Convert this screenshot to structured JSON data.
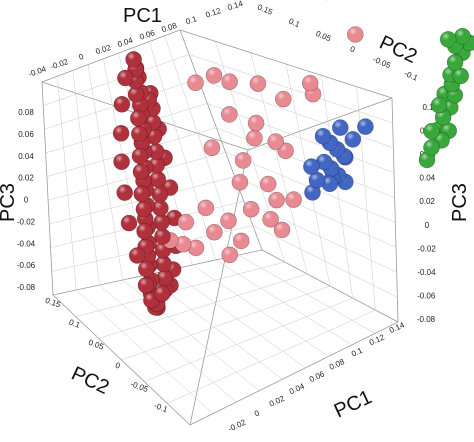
{
  "chart_data": {
    "type": "scatter",
    "projection": "3d",
    "axis_titles": {
      "top_pc1": "PC1",
      "top_pc2": "PC2",
      "left_pc3": "PC3",
      "right_pc3": "PC3",
      "bottom_pc2": "PC2",
      "bottom_pc1": "PC1"
    },
    "tick_labels": {
      "top_pc1": [
        "-0.04",
        "-0.02",
        "0",
        "0.02",
        "0.04",
        "0.06",
        "0.08",
        "0.1",
        "0.12",
        "0.14"
      ],
      "top_pc2": [
        "0.15",
        "0.1",
        "0.05",
        "0",
        "-0.05",
        "-0.1"
      ],
      "left_pc3": [
        "0.08",
        "0.06",
        "0.04",
        "0.02",
        "0",
        "-0.02",
        "-0.04",
        "-0.06",
        "-0.08"
      ],
      "right_pc3": [
        "0.1",
        "0.08",
        "0.06",
        "0.04",
        "0.02",
        "0",
        "-0.02",
        "-0.04",
        "-0.06",
        "-0.08"
      ],
      "bottom_pc2": [
        "0.15",
        "0.1",
        "0.05",
        "0",
        "-0.05",
        "-0.1"
      ],
      "bottom_pc1": [
        "0.14",
        "0.12",
        "0.1",
        "0.08",
        "0.06",
        "0.04",
        "0.02",
        "0",
        "-0.02"
      ]
    },
    "series": [
      {
        "color": "#b0303c",
        "points": [
          [
            -0.025,
            0.12,
            0.07
          ],
          [
            -0.024,
            0.115,
            0.065
          ],
          [
            -0.023,
            0.12,
            0.06
          ],
          [
            -0.022,
            0.11,
            0.055
          ],
          [
            -0.021,
            0.118,
            0.05
          ],
          [
            -0.02,
            0.11,
            0.045
          ],
          [
            -0.02,
            0.105,
            0.04
          ],
          [
            -0.019,
            0.11,
            0.035
          ],
          [
            -0.018,
            0.1,
            0.03
          ],
          [
            -0.018,
            0.105,
            0.025
          ],
          [
            -0.017,
            0.1,
            0.02
          ],
          [
            -0.016,
            0.095,
            0.015
          ],
          [
            -0.016,
            0.1,
            0.01
          ],
          [
            -0.015,
            0.09,
            0.005
          ],
          [
            -0.015,
            0.095,
            0
          ],
          [
            -0.014,
            0.09,
            -0.005
          ],
          [
            -0.013,
            0.085,
            -0.01
          ],
          [
            -0.013,
            0.09,
            -0.015
          ],
          [
            -0.012,
            0.08,
            -0.02
          ],
          [
            -0.011,
            0.085,
            -0.025
          ],
          [
            -0.011,
            0.08,
            -0.03
          ],
          [
            -0.01,
            0.075,
            -0.035
          ],
          [
            -0.009,
            0.08,
            -0.04
          ],
          [
            -0.009,
            0.07,
            -0.045
          ],
          [
            -0.008,
            0.075,
            -0.05
          ],
          [
            -0.007,
            0.07,
            -0.055
          ],
          [
            -0.007,
            0.065,
            -0.06
          ],
          [
            -0.006,
            0.07,
            -0.065
          ],
          [
            -0.005,
            0.06,
            -0.07
          ],
          [
            -0.004,
            0.065,
            -0.075
          ],
          [
            -0.003,
            0.06,
            -0.08
          ],
          [
            -0.002,
            0.055,
            -0.083
          ],
          [
            -0.001,
            0.06,
            -0.086
          ],
          [
            0,
            0.05,
            -0.088
          ],
          [
            0.001,
            0.055,
            -0.09
          ],
          [
            -0.022,
            0.095,
            0.06
          ],
          [
            -0.02,
            0.09,
            0.05
          ],
          [
            -0.018,
            0.088,
            0.04
          ],
          [
            -0.016,
            0.085,
            0.03
          ],
          [
            -0.014,
            0.08,
            0.02
          ],
          [
            -0.012,
            0.078,
            0.01
          ],
          [
            -0.01,
            0.075,
            0
          ],
          [
            -0.008,
            0.07,
            -0.01
          ],
          [
            -0.006,
            0.068,
            -0.02
          ],
          [
            -0.004,
            0.065,
            -0.03
          ],
          [
            -0.002,
            0.062,
            -0.04
          ],
          [
            0,
            0.06,
            -0.05
          ],
          [
            0.002,
            0.058,
            -0.06
          ],
          [
            0.004,
            0.055,
            -0.07
          ],
          [
            0.005,
            0.052,
            -0.078
          ],
          [
            -0.026,
            0.125,
            0.075
          ],
          [
            -0.024,
            0.122,
            0.068
          ],
          [
            -0.019,
            0.1,
            0.052
          ],
          [
            -0.015,
            0.082,
            0.036
          ],
          [
            -0.011,
            0.07,
            0.018
          ],
          [
            -0.006,
            0.06,
            -0.002
          ],
          [
            -0.002,
            0.05,
            -0.022
          ],
          [
            0.002,
            0.045,
            -0.042
          ],
          [
            0.006,
            0.048,
            -0.062
          ],
          [
            0.008,
            0.05,
            -0.075
          ],
          [
            0.008,
            0.06,
            -0.085
          ],
          [
            0.004,
            0.058,
            -0.09
          ],
          [
            -0.003,
            0.07,
            -0.078
          ],
          [
            -0.008,
            0.085,
            -0.06
          ],
          [
            -0.013,
            0.1,
            -0.04
          ],
          [
            -0.017,
            0.11,
            -0.02
          ],
          [
            -0.02,
            0.12,
            0
          ],
          [
            -0.023,
            0.125,
            0.02
          ],
          [
            -0.025,
            0.13,
            0.04
          ],
          [
            -0.027,
            0.13,
            0.06
          ]
        ]
      },
      {
        "color": "#e98a92",
        "points": [
          [
            0.02,
            0.07,
            0.065
          ],
          [
            0.03,
            0.06,
            0.06
          ],
          [
            0.01,
            0.08,
            0.06
          ],
          [
            0.045,
            0.04,
            0.06
          ],
          [
            0.06,
            0.02,
            0.05
          ],
          [
            0.075,
            0.0,
            0.055
          ],
          [
            0.07,
            0.0,
            0.065
          ],
          [
            0.03,
            0.05,
            0.04
          ],
          [
            0.045,
            0.03,
            0.035
          ],
          [
            0.04,
            0.02,
            0.03
          ],
          [
            0.055,
            0.01,
            0.025
          ],
          [
            0.06,
            0.0,
            0.02
          ],
          [
            0.02,
            0.05,
            0.02
          ],
          [
            0.04,
            0.03,
            0.01
          ],
          [
            0.035,
            0.02,
            0.0
          ],
          [
            0.05,
            0.0,
            0.0
          ],
          [
            0.055,
            -0.01,
            -0.01
          ],
          [
            0.065,
            -0.02,
            -0.01
          ],
          [
            0.05,
            -0.015,
            -0.02
          ],
          [
            0.06,
            -0.02,
            -0.03
          ],
          [
            0.045,
            0.01,
            -0.02
          ],
          [
            0.035,
            0.025,
            -0.03
          ],
          [
            0.02,
            0.04,
            -0.02
          ],
          [
            0.01,
            0.05,
            -0.03
          ],
          [
            0.03,
            0.035,
            -0.04
          ],
          [
            0.015,
            0.055,
            -0.05
          ],
          [
            0.025,
            0.05,
            -0.055
          ],
          [
            0.005,
            0.06,
            -0.045
          ],
          [
            0.04,
            0.02,
            -0.055
          ],
          [
            0.045,
            0.015,
            -0.045
          ],
          [
            0.1,
            0.05,
            0.1
          ],
          [
            0.11,
            0.01,
            0.08
          ]
        ]
      },
      {
        "color": "#4266c4",
        "points": [
          [
            0.09,
            -0.005,
            0.02
          ],
          [
            0.095,
            -0.01,
            0.015
          ],
          [
            0.1,
            -0.015,
            0.01
          ],
          [
            0.105,
            -0.02,
            0.005
          ],
          [
            0.09,
            -0.015,
            0.005
          ],
          [
            0.095,
            -0.02,
            0.0
          ],
          [
            0.1,
            -0.025,
            -0.005
          ],
          [
            0.105,
            -0.03,
            -0.01
          ],
          [
            0.085,
            -0.005,
            0.0
          ],
          [
            0.09,
            -0.01,
            -0.01
          ],
          [
            0.1,
            -0.015,
            -0.015
          ],
          [
            0.095,
            -0.025,
            -0.005
          ],
          [
            0.11,
            -0.02,
            0.015
          ],
          [
            0.085,
            -0.015,
            -0.015
          ],
          [
            0.1,
            -0.03,
            0.01
          ],
          [
            0.11,
            -0.035,
            0.03
          ],
          [
            0.105,
            -0.005,
            0.02
          ]
        ]
      },
      {
        "color": "#38a83a",
        "points": [
          [
            0.15,
            -0.07,
            0.09
          ],
          [
            0.155,
            -0.075,
            0.085
          ],
          [
            0.16,
            -0.08,
            0.08
          ],
          [
            0.155,
            -0.08,
            0.075
          ],
          [
            0.15,
            -0.085,
            0.07
          ],
          [
            0.16,
            -0.085,
            0.065
          ],
          [
            0.145,
            -0.09,
            0.06
          ],
          [
            0.155,
            -0.09,
            0.055
          ],
          [
            0.15,
            -0.095,
            0.05
          ],
          [
            0.145,
            -0.095,
            0.045
          ],
          [
            0.14,
            -0.1,
            0.04
          ],
          [
            0.15,
            -0.1,
            0.035
          ],
          [
            0.145,
            -0.1,
            0.03
          ],
          [
            0.14,
            -0.095,
            0.025
          ],
          [
            0.135,
            -0.1,
            0.02
          ],
          [
            0.165,
            -0.08,
            0.085
          ],
          [
            0.16,
            -0.075,
            0.09
          ],
          [
            0.15,
            -0.09,
            0.065
          ],
          [
            0.14,
            -0.09,
            0.035
          ],
          [
            0.145,
            -0.085,
            0.05
          ]
        ]
      }
    ]
  }
}
